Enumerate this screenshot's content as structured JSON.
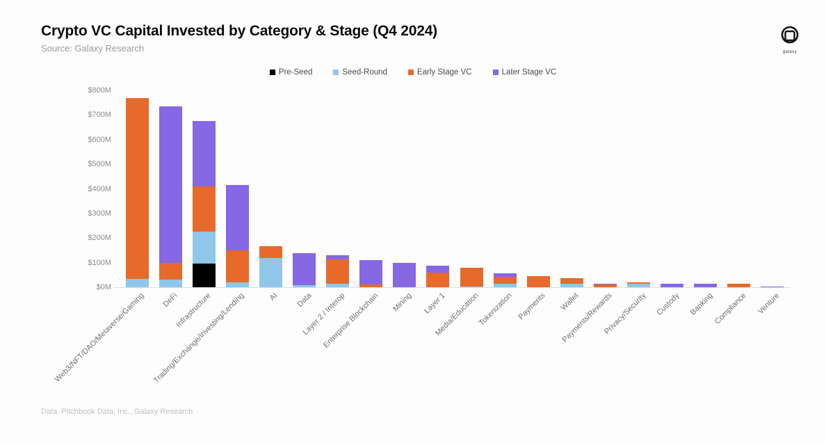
{
  "page": {
    "title": "Crypto VC Capital Invested by Category & Stage (Q4 2024)",
    "subtitle": "Source: Galaxy Research",
    "footer": "Data: Pitchbook Data, Inc., Galaxy Research",
    "logo_text": "galaxy"
  },
  "chart_data": {
    "type": "bar",
    "stacked": true,
    "title": "Crypto VC Capital Invested by Category & Stage (Q4 2024)",
    "xlabel": "",
    "ylabel": "",
    "unit": "$M",
    "ylim": [
      0,
      800
    ],
    "grid": false,
    "legend_position": "top-center",
    "y_ticks": [
      "$0M",
      "$100M",
      "$200M",
      "$300M",
      "$400M",
      "$500M",
      "$600M",
      "$700M",
      "$800M"
    ],
    "y_tick_values": [
      0,
      100,
      200,
      300,
      400,
      500,
      600,
      700,
      800
    ],
    "categories": [
      "Web3/NFT/DAO/Metaverse/Gaming",
      "DeFi",
      "Infrastructure",
      "Trading/Exchange/Investing/Lending",
      "AI",
      "Data",
      "Layer 2 / Interop",
      "Enterprise Blockchain",
      "Mining",
      "Layer 1",
      "Media/Education",
      "Tokenization",
      "Payments",
      "Wallet",
      "Payments/Rewards",
      "Privacy/Security",
      "Custody",
      "Banking",
      "Compliance",
      "Venture"
    ],
    "series": [
      {
        "name": "Pre-Seed",
        "color": "#000000",
        "values": [
          0,
          0,
          95,
          0,
          0,
          0,
          0,
          0,
          0,
          0,
          0,
          0,
          0,
          0,
          0,
          0,
          0,
          0,
          0,
          0
        ]
      },
      {
        "name": "Seed-Round",
        "color": "#8fc7ea",
        "values": [
          35,
          30,
          130,
          20,
          120,
          8,
          14,
          0,
          0,
          0,
          4,
          14,
          0,
          14,
          0,
          15,
          0,
          0,
          0,
          0
        ]
      },
      {
        "name": "Early Stage VC",
        "color": "#e76a2b",
        "values": [
          735,
          70,
          185,
          130,
          47,
          0,
          99,
          10,
          0,
          58,
          74,
          28,
          45,
          23,
          10,
          4,
          0,
          0,
          14,
          0
        ]
      },
      {
        "name": "Later Stage VC",
        "color": "#8667e4",
        "values": [
          0,
          635,
          265,
          265,
          0,
          130,
          17,
          100,
          100,
          30,
          0,
          15,
          0,
          0,
          5,
          0,
          15,
          14,
          0,
          2
        ]
      }
    ]
  }
}
